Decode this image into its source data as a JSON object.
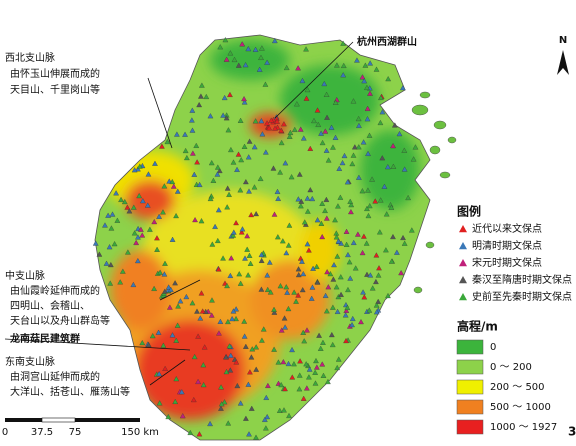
{
  "annotations": {
    "northwest": {
      "lines": [
        "西北支山脉",
        "由怀玉山伸展而成的",
        "天目山、千里岗山等"
      ]
    },
    "west_lake": "杭州西湖群山",
    "central": {
      "lines": [
        "中支山脉",
        "由仙霞岭延伸而成的",
        "四明山、会稽山、",
        "天台山以及舟山群岛等"
      ]
    },
    "longnan": "龙南菇民建筑群",
    "southeast": {
      "lines": [
        "东南支山脉",
        "由洞宫山延伸而成的",
        "大洋山、括苍山、雁荡山等"
      ]
    }
  },
  "north_arrow": "N",
  "legend": {
    "title": "图例",
    "items": [
      "近代以来文保点",
      "明清时期文保点",
      "宋元时期文保点",
      "秦汉至隋唐时期文保点",
      "史前至先秦时期文保点"
    ]
  },
  "elevation": {
    "title": "高程/m",
    "items": [
      "0",
      "0 ～ 200",
      "200 ～ 500",
      "500 ～ 1000",
      "1000 ～ 1927"
    ]
  },
  "scale_bar": [
    "0",
    "37.5",
    "75",
    "150 km"
  ],
  "page_number": "3"
}
